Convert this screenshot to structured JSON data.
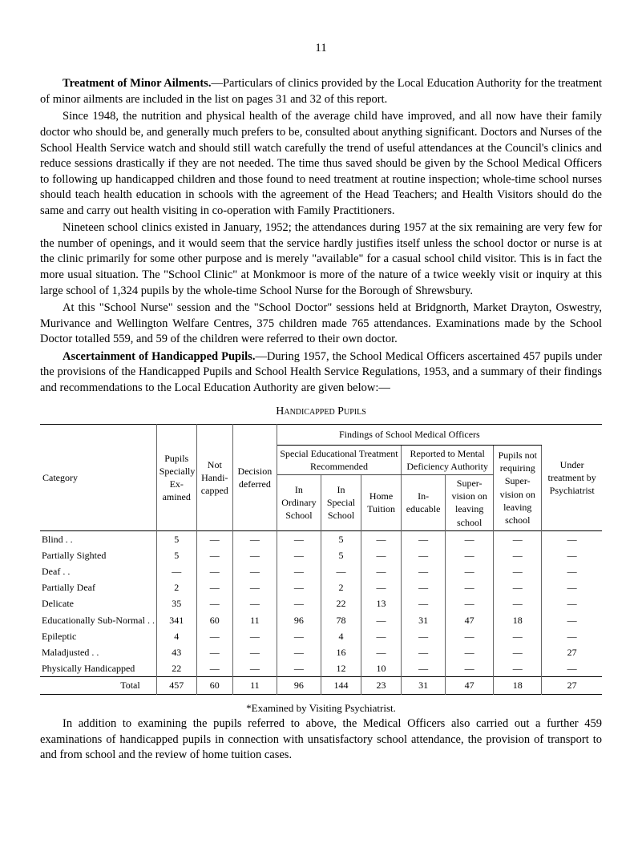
{
  "page_number": "11",
  "paragraphs": {
    "p1_lead": "Treatment of Minor Ailments.",
    "p1_rest": "—Particulars of clinics provided by the Local Education Authority for the treatment of minor ailments are included in the list on pages 31 and 32 of this report.",
    "p2": "Since 1948, the nutrition and physical health of the average child have improved, and all now have their family doctor who should be, and generally much prefers to be, consulted about anything significant. Doctors and Nurses of the School Health Service watch and should still watch carefully the trend of useful attendances at the Council's clinics and reduce sessions drastically if they are not needed. The time thus saved should be given by the School Medical Officers to following up handicapped children and those found to need treatment at routine inspection; whole-time school nurses should teach health education in schools with the agreement of the Head Teachers; and Health Visitors should do the same and carry out health visiting in co-operation with Family Practitioners.",
    "p3": "Nineteen school clinics existed in January, 1952; the attendances during 1957 at the six remaining are very few for the number of openings, and it would seem that the service hardly justifies itself unless the school doctor or nurse is at the clinic primarily for some other purpose and is merely \"available\" for a casual school child visitor. This is in fact the more usual situation. The \"School Clinic\" at Monkmoor is more of the nature of a twice weekly visit or inquiry at this large school of 1,324 pupils by the whole-time School Nurse for the Borough of Shrewsbury.",
    "p4": "At this \"School Nurse\" session and the \"School Doctor\" sessions held at Bridgnorth, Market Drayton, Oswestry, Murivance and Wellington Welfare Centres, 375 children made 765 attendances. Examinations made by the School Doctor totalled 559, and 59 of the children were referred to their own doctor.",
    "p5_lead": "Ascertainment of Handicapped Pupils.",
    "p5_rest": "—During 1957, the School Medical Officers ascertained 457 pupils under the provisions of the Handicapped Pupils and School Health Service Regulations, 1953, and a summary of their findings and recommendations to the Local Education Authority are given below:—"
  },
  "table_title": "Handicapped Pupils",
  "table": {
    "header": {
      "category": "Category",
      "findings": "Findings of School Medical Officers",
      "pupils": "Pupils Specially Ex- amined",
      "nothandi": "Not Handi- capped",
      "decision": "Decision deferred",
      "span_special": "Special Educational Treatment Recommended",
      "span_reported": "Reported to Mental Deficiency Authority",
      "span_pupils_not": "Pupils not requiring Super- vision on leaving school",
      "in_ordinary": "In Ordinary School",
      "in_special": "In Special School",
      "home_tuition": "Home Tuition",
      "in_educable": "In- educable",
      "super_vision": "Super- vision on leaving school",
      "under": "Under treatment by Psychiatrist"
    },
    "rows": [
      {
        "label": "Blind . .",
        "c": [
          "5",
          "—",
          "—",
          "—",
          "5",
          "—",
          "—",
          "—",
          "—",
          "—"
        ]
      },
      {
        "label": "Partially Sighted",
        "c": [
          "5",
          "—",
          "—",
          "—",
          "5",
          "—",
          "—",
          "—",
          "—",
          "—"
        ]
      },
      {
        "label": "Deaf . .",
        "c": [
          "—",
          "—",
          "—",
          "—",
          "—",
          "—",
          "—",
          "—",
          "—",
          "—"
        ]
      },
      {
        "label": "Partially Deaf",
        "c": [
          "2",
          "—",
          "—",
          "—",
          "2",
          "—",
          "—",
          "—",
          "—",
          "—"
        ]
      },
      {
        "label": "Delicate",
        "c": [
          "35",
          "—",
          "—",
          "—",
          "22",
          "13",
          "—",
          "—",
          "—",
          "—"
        ]
      },
      {
        "label": "Educationally Sub-Normal . .",
        "c": [
          "341",
          "60",
          "11",
          "96",
          "78",
          "—",
          "31",
          "47",
          "18",
          "—"
        ]
      },
      {
        "label": "Epileptic",
        "c": [
          "4",
          "—",
          "—",
          "—",
          "4",
          "—",
          "—",
          "—",
          "—",
          "—"
        ]
      },
      {
        "label": "Maladjusted . .",
        "c": [
          "43",
          "—",
          "—",
          "—",
          "16",
          "—",
          "—",
          "—",
          "—",
          "27"
        ]
      },
      {
        "label": "Physically Handicapped",
        "c": [
          "22",
          "—",
          "—",
          "—",
          "12",
          "10",
          "—",
          "—",
          "—",
          "—"
        ]
      }
    ],
    "total": {
      "label": "Total",
      "c": [
        "457",
        "60",
        "11",
        "96",
        "144",
        "23",
        "31",
        "47",
        "18",
        "27"
      ]
    }
  },
  "footnote": "*Examined by Visiting Psychiatrist.",
  "closing": "In addition to examining the pupils referred to above, the Medical Officers also carried out a further 459 examinations of handicapped pupils in connection with unsatisfactory school attendance, the provision of transport to and from school and the review of home tuition cases."
}
